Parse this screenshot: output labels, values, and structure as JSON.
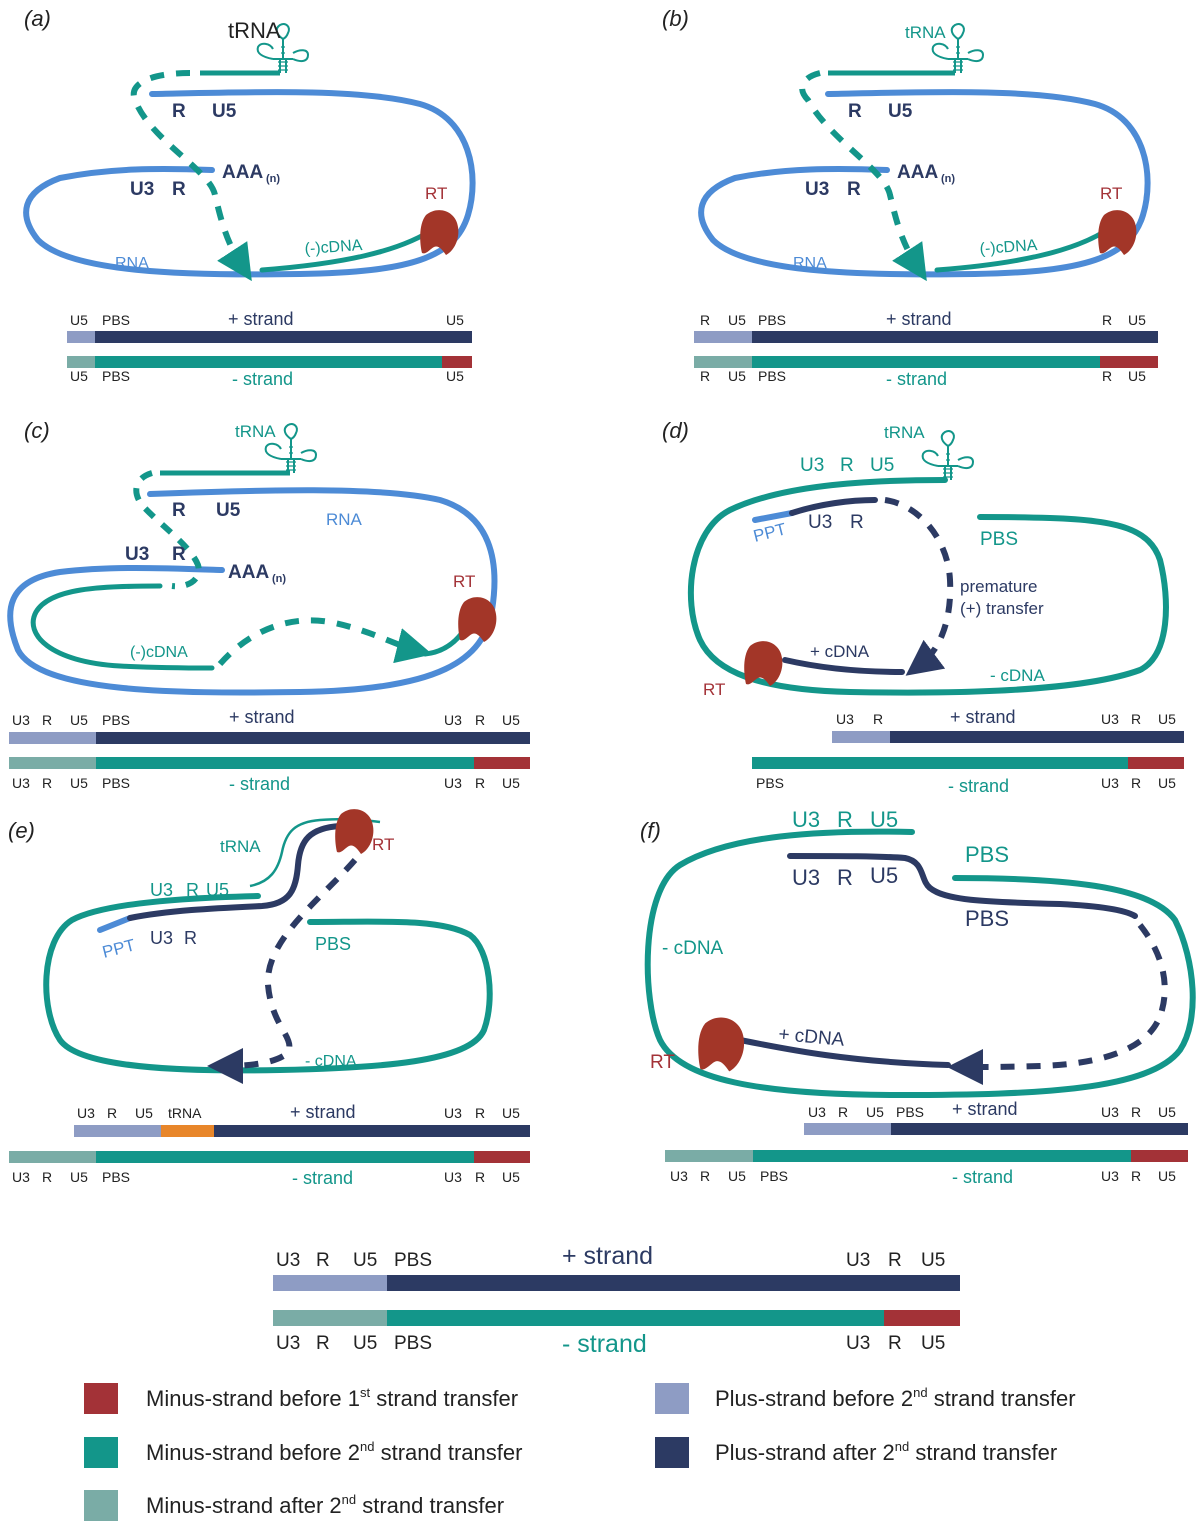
{
  "colors": {
    "rna": "#4d8bd6",
    "teal": "#13968a",
    "navy": "#2c3a63",
    "plus_light": "#8e9cc4",
    "minus_after": "#7aaca6",
    "red": "#a33237",
    "orange": "#e8862a",
    "rt": "#a33628"
  },
  "panels": {
    "a": {
      "label": "(a)",
      "trna": "tRNA",
      "r": "R",
      "u5": "U5",
      "u3": "U3",
      "r2": "R",
      "aaa": "AAA",
      "aaa_sub": "(n)",
      "rt": "RT",
      "cdna": "(-)cDNA",
      "rna": "RNA",
      "plus": [
        "U5",
        "PBS",
        "+ strand",
        "U5"
      ],
      "minus": [
        "U5",
        "PBS",
        "- strand",
        "U5"
      ]
    },
    "b": {
      "label": "(b)",
      "trna": "tRNA",
      "r": "R",
      "u5": "U5",
      "u3": "U3",
      "r2": "R",
      "aaa": "AAA",
      "aaa_sub": "(n)",
      "rt": "RT",
      "cdna": "(-)cDNA",
      "rna": "RNA",
      "plus": [
        "R",
        "U5",
        "PBS",
        "+ strand",
        "R",
        "U5"
      ],
      "minus": [
        "R",
        "U5",
        "PBS",
        "- strand",
        "R",
        "U5"
      ]
    },
    "c": {
      "label": "(c)",
      "trna": "tRNA",
      "r": "R",
      "u5": "U5",
      "rna": "RNA",
      "u3": "U3",
      "r2": "R",
      "aaa": "AAA",
      "aaa_sub": "(n)",
      "rt": "RT",
      "cdna": "(-)cDNA",
      "plus": [
        "U3",
        "R",
        "U5",
        "PBS",
        "+ strand",
        "U3",
        "R",
        "U5"
      ],
      "minus": [
        "U3",
        "R",
        "U5",
        "PBS",
        "- strand",
        "U3",
        "R",
        "U5"
      ]
    },
    "d": {
      "label": "(d)",
      "trna": "tRNA",
      "u3r_u5": [
        "U3",
        "R",
        "U5"
      ],
      "ppt": "PPT",
      "u3": "U3",
      "r": "R",
      "pbs": "PBS",
      "premature_1": "premature",
      "premature_2": "(+) transfer",
      "plus_cdna": "+ cDNA",
      "minus_cdna": "- cDNA",
      "rt": "RT",
      "plus": [
        "U3",
        "R",
        "+ strand",
        "U3",
        "R",
        "U5"
      ],
      "minus": [
        "PBS",
        "- strand",
        "U3",
        "R",
        "U5"
      ]
    },
    "e": {
      "label": "(e)",
      "trna": "tRNA",
      "rt": "RT",
      "u3r_u5": [
        "U3",
        "R",
        "U5"
      ],
      "ppt": "PPT",
      "u3": "U3",
      "r": "R",
      "pbs": "PBS",
      "minus_cdna": "- cDNA",
      "plus": [
        "U3",
        "R",
        "U5",
        "tRNA",
        "+ strand",
        "U3",
        "R",
        "U5"
      ],
      "minus": [
        "U3",
        "R",
        "U5",
        "PBS",
        "- strand",
        "U3",
        "R",
        "U5"
      ]
    },
    "f": {
      "label": "(f)",
      "u3r_u5_top": [
        "U3",
        "R",
        "U5"
      ],
      "u3r_u5_bot": [
        "U3",
        "R",
        "U5"
      ],
      "pbs_top": "PBS",
      "pbs_bot": "PBS",
      "minus_cdna": "- cDNA",
      "plus_cdna": "+ cDNA",
      "rt": "RT",
      "plus": [
        "U3",
        "R",
        "U5",
        "PBS",
        "+ strand",
        "U3",
        "R",
        "U5"
      ],
      "minus": [
        "U3",
        "R",
        "U5",
        "PBS",
        "- strand",
        "U3",
        "R",
        "U5"
      ]
    }
  },
  "final": {
    "plus": [
      "U3",
      "R",
      "U5",
      "PBS",
      "+ strand",
      "U3",
      "R",
      "U5"
    ],
    "minus": [
      "U3",
      "R",
      "U5",
      "PBS",
      "- strand",
      "U3",
      "R",
      "U5"
    ]
  },
  "legend": [
    {
      "color_key": "red",
      "pre": "Minus-strand before 1",
      "sup": "st",
      "post": " strand transfer"
    },
    {
      "color_key": "teal",
      "pre": "Minus-strand before 2",
      "sup": "nd",
      "post": " strand transfer"
    },
    {
      "color_key": "minus_after",
      "pre": "Minus-strand after 2",
      "sup": "nd",
      "post": " strand transfer"
    },
    {
      "color_key": "plus_light",
      "pre": "Plus-strand before 2",
      "sup": "nd",
      "post": " strand transfer"
    },
    {
      "color_key": "navy",
      "pre": "Plus-strand after 2",
      "sup": "nd",
      "post": " strand transfer"
    }
  ]
}
